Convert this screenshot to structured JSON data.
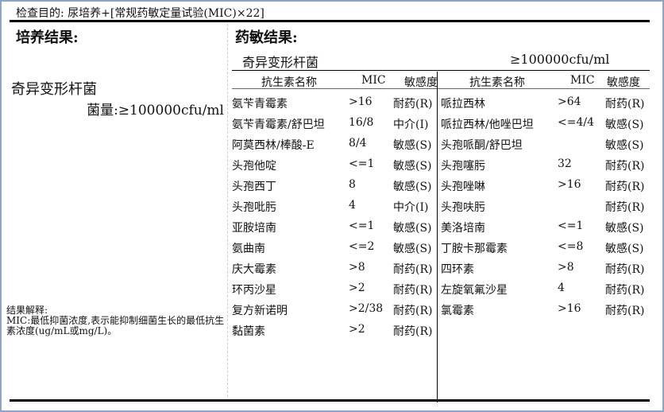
{
  "header": {
    "exam_purpose": "检查目的: 尿培养+[常规药敏定量试验(MIC)×22]"
  },
  "culture": {
    "heading": "培养结果:",
    "organism": "奇异变形杆菌",
    "count": "菌量:≥100000cfu/ml"
  },
  "explanation": {
    "title": "结果解释:",
    "text": "MIC:最低抑菌浓度,表示能抑制细菌生长的最低抗生素浓度(ug/mL或mg/L)。"
  },
  "susceptibility": {
    "heading": "药敏结果:",
    "organism": "奇异变形杆菌",
    "count": "≥100000cfu/ml",
    "columns": [
      "抗生素名称",
      "MIC",
      "敏感度"
    ],
    "left": [
      [
        "氨苄青霉素",
        ">16",
        "耐药(R)"
      ],
      [
        "氨苄青霉素/舒巴坦",
        "16/8",
        "中介(I)"
      ],
      [
        "阿莫西林/棒酸-E",
        "8/4",
        "敏感(S)"
      ],
      [
        "头孢他啶",
        "<=1",
        "敏感(S)"
      ],
      [
        "头孢西丁",
        "8",
        "敏感(S)"
      ],
      [
        "头孢吡肟",
        "4",
        "中介(I)"
      ],
      [
        "亚胺培南",
        "<=1",
        "敏感(S)"
      ],
      [
        "氨曲南",
        "<=2",
        "敏感(S)"
      ],
      [
        "庆大霉素",
        ">8",
        "耐药(R)"
      ],
      [
        "环丙沙星",
        ">2",
        "耐药(R)"
      ],
      [
        "复方新诺明",
        ">2/38",
        "耐药(R)"
      ],
      [
        "黏菌素",
        ">2",
        "耐药(R)"
      ]
    ],
    "right": [
      [
        "哌拉西林",
        ">64",
        "耐药(R)"
      ],
      [
        "哌拉西林/他唑巴坦",
        "<=4/4",
        "敏感(S)"
      ],
      [
        "头孢哌酮/舒巴坦",
        "",
        "敏感(S)"
      ],
      [
        "头孢噻肟",
        "32",
        "耐药(R)"
      ],
      [
        "头孢唑啉",
        ">16",
        "耐药(R)"
      ],
      [
        "头孢呋肟",
        "",
        "耐药(R)"
      ],
      [
        "美洛培南",
        "<=1",
        "敏感(S)"
      ],
      [
        "丁胺卡那霉素",
        "<=8",
        "敏感(S)"
      ],
      [
        "四环素",
        ">8",
        "耐药(R)"
      ],
      [
        "左旋氧氟沙星",
        "4",
        "耐药(R)"
      ],
      [
        "氯霉素",
        ">16",
        "耐药(R)"
      ]
    ]
  }
}
